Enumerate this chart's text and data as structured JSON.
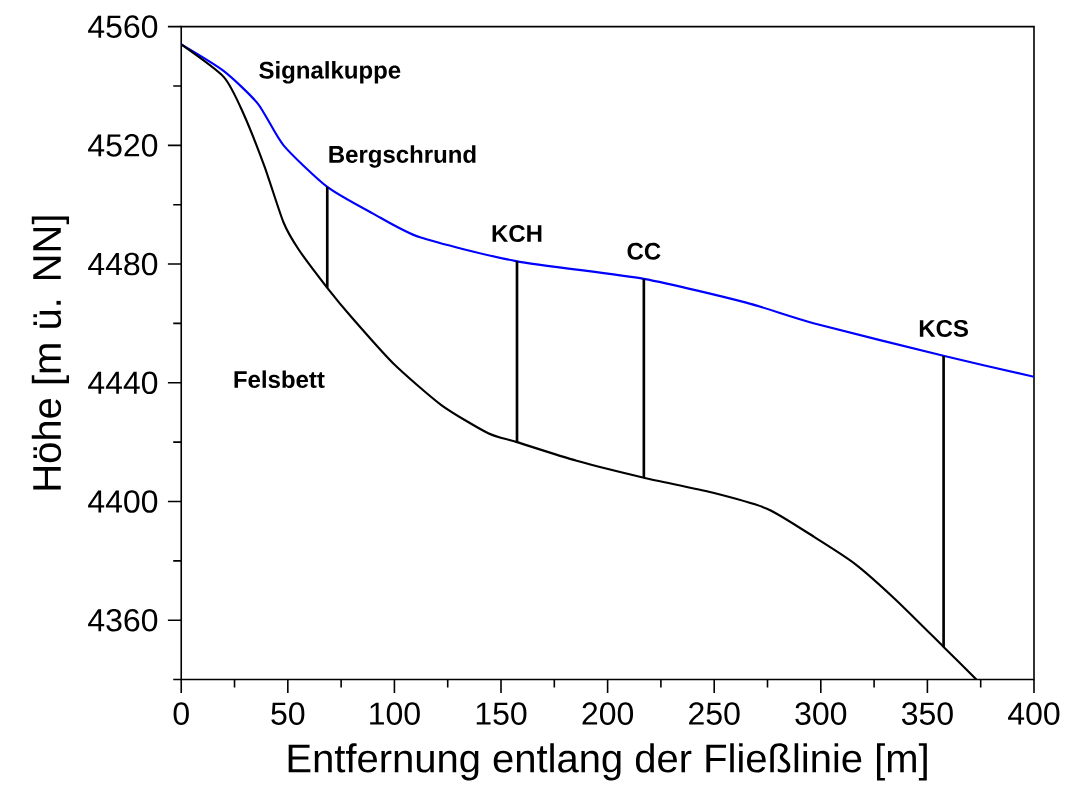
{
  "chart_data": {
    "type": "line",
    "xlabel": "Entfernung entlang der Fließlinie [m]",
    "ylabel": "Höhe [m ü. NN]",
    "xlim": [
      0,
      400
    ],
    "ylim": [
      4340,
      4560
    ],
    "xticks": [
      0,
      {
        "value": 25,
        "label": null
      },
      50,
      {
        "value": 75,
        "label": null
      },
      100,
      {
        "value": 125,
        "label": null
      },
      150,
      {
        "value": 175,
        "label": null
      },
      200,
      {
        "value": 225,
        "label": null
      },
      250,
      {
        "value": 275,
        "label": null
      },
      300,
      {
        "value": 325,
        "label": null
      },
      350,
      {
        "value": 375,
        "label": null
      },
      400
    ],
    "yticks": [
      {
        "value": 4340,
        "label": null
      },
      4360,
      {
        "value": 4380,
        "label": null
      },
      4400,
      {
        "value": 4420,
        "label": null
      },
      4440,
      {
        "value": 4460,
        "label": null
      },
      4480,
      {
        "value": 4500,
        "label": null
      },
      4520,
      {
        "value": 4540,
        "label": null
      },
      4560
    ],
    "grid": false,
    "marker": "none",
    "line_style": "solid",
    "series": [
      {
        "color": "#0000ff",
        "x": [
          0,
          20,
          36,
          48,
          68.5,
          90,
          112,
          157,
          217,
          265,
          297,
          358,
          400
        ],
        "values": [
          4554,
          4545,
          4534,
          4520,
          4506,
          4497,
          4489,
          4481,
          4475,
          4467,
          4460,
          4449,
          4442
        ]
      },
      {
        "color": "#000000",
        "x": [
          0,
          20,
          29,
          39,
          48,
          55,
          68.5,
          80,
          99.5,
          122,
          144,
          157.5,
          185.5,
          217,
          249,
          275,
          297,
          316,
          335,
          357.6,
          373
        ],
        "values": [
          4554,
          4543,
          4531,
          4513,
          4494,
          4485,
          4472,
          4462,
          4446.5,
          4432.5,
          4423,
          4420,
          4413.7,
          4408,
          4403,
          4397.5,
          4388,
          4379,
          4367,
          4351,
          4340
        ]
      },
      {
        "color": "#000000",
        "x": [
          68.5,
          68.5
        ],
        "values": [
          4506,
          4472
        ]
      },
      {
        "color": "#000000",
        "x": [
          157.5,
          157.5
        ],
        "values": [
          4481,
          4420
        ]
      },
      {
        "color": "#000000",
        "x": [
          217,
          217
        ],
        "values": [
          4475,
          4408
        ]
      },
      {
        "color": "#000000",
        "x": [
          357.6,
          357.6
        ],
        "values": [
          4449,
          4351
        ]
      }
    ],
    "annotations": [
      "Signalkuppe",
      "Bergschrund",
      "KCH",
      "CC",
      "KCS",
      "Felsbett"
    ]
  }
}
